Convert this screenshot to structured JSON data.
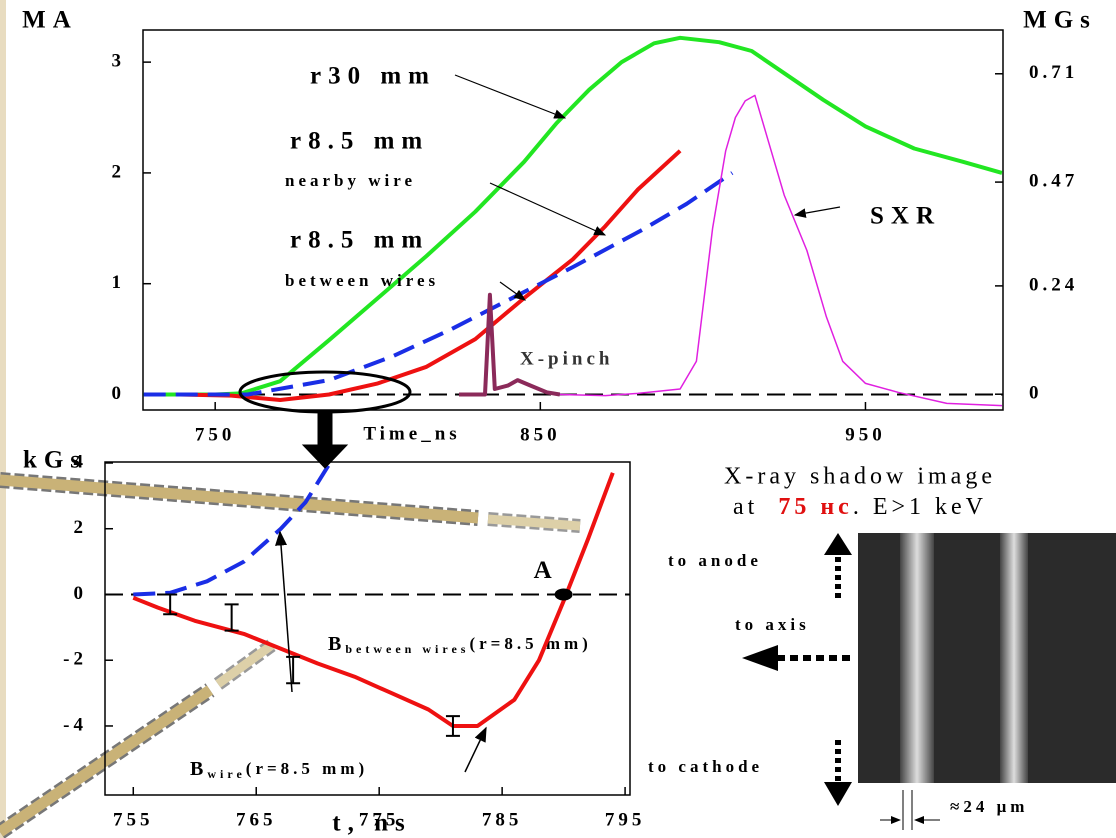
{
  "chart_data": [
    {
      "type": "line",
      "y_unit": "MA",
      "y2_unit": "MGs",
      "xlabel": "Time_ns",
      "xlim": [
        727.8,
        992.3
      ],
      "ylim": [
        -0.14,
        3.29
      ],
      "y2lim": [
        -0.035,
        0.807
      ],
      "xticks": [
        750,
        850,
        950
      ],
      "yticks": [
        0,
        1,
        2,
        3
      ],
      "y2ticks": [
        0,
        0.24,
        0.47,
        0.71
      ],
      "zero_line": true,
      "series": [
        {
          "name": "r30 mm",
          "color": "#22e622",
          "dashed": false,
          "x": [
            728,
            750,
            758,
            770,
            785,
            800,
            815,
            830,
            845,
            855,
            865,
            875,
            885,
            893,
            905,
            915,
            925,
            937,
            950,
            965,
            980,
            992
          ],
          "values": [
            0,
            0,
            0.01,
            0.12,
            0.49,
            0.87,
            1.25,
            1.65,
            2.1,
            2.45,
            2.75,
            3.0,
            3.17,
            3.22,
            3.18,
            3.1,
            2.9,
            2.66,
            2.42,
            2.22,
            2.1,
            2.0
          ]
        },
        {
          "name": "r8.5 mm",
          "sublabel": "nearby wire",
          "color": "#ee1111",
          "dashed": false,
          "x": [
            739,
            755,
            770,
            785,
            800,
            815,
            830,
            845,
            860,
            870,
            880,
            893
          ],
          "values": [
            0,
            -0.01,
            -0.05,
            0,
            0.1,
            0.25,
            0.5,
            0.87,
            1.22,
            1.52,
            1.85,
            2.2
          ]
        },
        {
          "name": "r8.5 mm",
          "sublabel": "between wires",
          "color": "#1a2ee6",
          "dashed": true,
          "x": [
            728,
            760,
            785,
            805,
            822,
            840,
            860,
            881,
            895,
            909
          ],
          "values": [
            0,
            0,
            0.13,
            0.35,
            0.58,
            0.85,
            1.15,
            1.48,
            1.72,
            2.0
          ]
        },
        {
          "name": "X-pinch",
          "color": "#8b2a5a",
          "dashed": false,
          "x": [
            825,
            833,
            834.5,
            836,
            840,
            843,
            847,
            852,
            856
          ],
          "values": [
            0,
            0,
            0.9,
            0.05,
            0.08,
            0.13,
            0.08,
            0.02,
            0
          ]
        },
        {
          "name": "SXR",
          "color": "#e020e0",
          "dashed": false,
          "x": [
            856,
            870,
            880,
            893,
            898,
            903,
            907,
            910,
            913,
            916,
            920,
            925,
            932,
            938,
            943,
            950,
            960,
            975,
            992
          ],
          "values": [
            0,
            -0.01,
            0.01,
            0.05,
            0.3,
            1.5,
            2.2,
            2.5,
            2.65,
            2.7,
            2.3,
            1.8,
            1.3,
            0.7,
            0.3,
            0.1,
            0.02,
            -0.08,
            -0.1
          ]
        }
      ]
    },
    {
      "type": "line",
      "y_unit": "kGs",
      "xlabel": "t, ns",
      "xlim": [
        752.7,
        795.4
      ],
      "ylim": [
        -6.1,
        4.03
      ],
      "xticks": [
        755,
        765,
        775,
        785,
        795
      ],
      "yticks": [
        -4,
        -2,
        0,
        2,
        4
      ],
      "zero_line": true,
      "series": [
        {
          "name": "B",
          "subscript": "between wires",
          "suffix": "(r=8.5 mm)",
          "color": "#1a2ee6",
          "dashed": true,
          "x": [
            755,
            758,
            761,
            764,
            767,
            769,
            771
          ],
          "values": [
            0,
            0.05,
            0.4,
            1.0,
            2.0,
            2.8,
            4
          ]
        },
        {
          "name": "B",
          "subscript": "wire",
          "suffix": "(r=8.5 mm)",
          "color": "#ee1111",
          "dashed": false,
          "x": [
            755,
            757,
            760,
            764,
            768,
            770,
            773,
            776,
            779,
            781,
            783,
            786,
            788,
            790,
            792,
            794
          ],
          "values": [
            -0.1,
            -0.4,
            -0.8,
            -1.2,
            -1.8,
            -2.1,
            -2.5,
            -3.0,
            -3.5,
            -4.0,
            -4.0,
            -3.2,
            -2.0,
            -0.2,
            1.7,
            3.7
          ]
        }
      ],
      "error_bars": {
        "x": [
          758,
          763,
          768,
          781
        ],
        "values": [
          -0.3,
          -0.7,
          -2.3,
          -4.0
        ],
        "errors": [
          0.3,
          0.4,
          0.4,
          0.3
        ]
      },
      "points": [
        {
          "label": "A",
          "x": 790,
          "value": 0
        }
      ]
    }
  ],
  "image_panel": {
    "caption_line1": "X-ray shadow image",
    "caption_prefix": "at",
    "caption_highlight": "75 нс",
    "caption_suffix": ". E>1 keV",
    "to_anode": "to anode",
    "to_axis": "to axis",
    "to_cathode": "to cathode",
    "scale": "≈24 μm"
  }
}
